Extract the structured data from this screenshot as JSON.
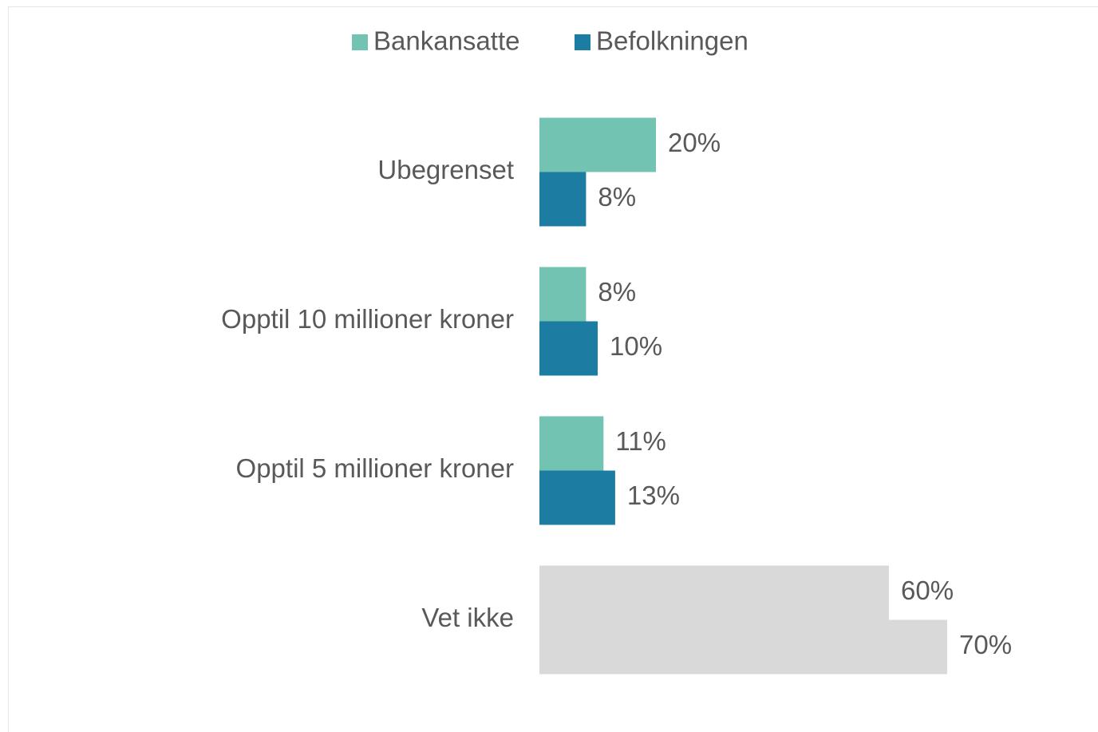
{
  "chart_data": {
    "type": "hbar",
    "categories": [
      "Ubegrenset",
      "Opptil 10 millioner kroner",
      "Opptil 5 millioner kroner",
      "Vet ikke"
    ],
    "series": [
      {
        "name": "Bankansatte",
        "color": "#72c3b1",
        "colors": [
          "#72c3b1",
          "#72c3b1",
          "#72c3b1",
          "#d9d9d9"
        ],
        "values": [
          20,
          8,
          11,
          60
        ],
        "value_labels": [
          "20%",
          "8%",
          "11%",
          "60%"
        ]
      },
      {
        "name": "Befolkningen",
        "color": "#1c7ca1",
        "colors": [
          "#1c7ca1",
          "#1c7ca1",
          "#1c7ca1",
          "#d9d9d9"
        ],
        "values": [
          8,
          10,
          13,
          70
        ],
        "value_labels": [
          "8%",
          "10%",
          "13%",
          "70%"
        ]
      }
    ],
    "xlim": [
      0,
      80
    ],
    "legend": "top"
  }
}
